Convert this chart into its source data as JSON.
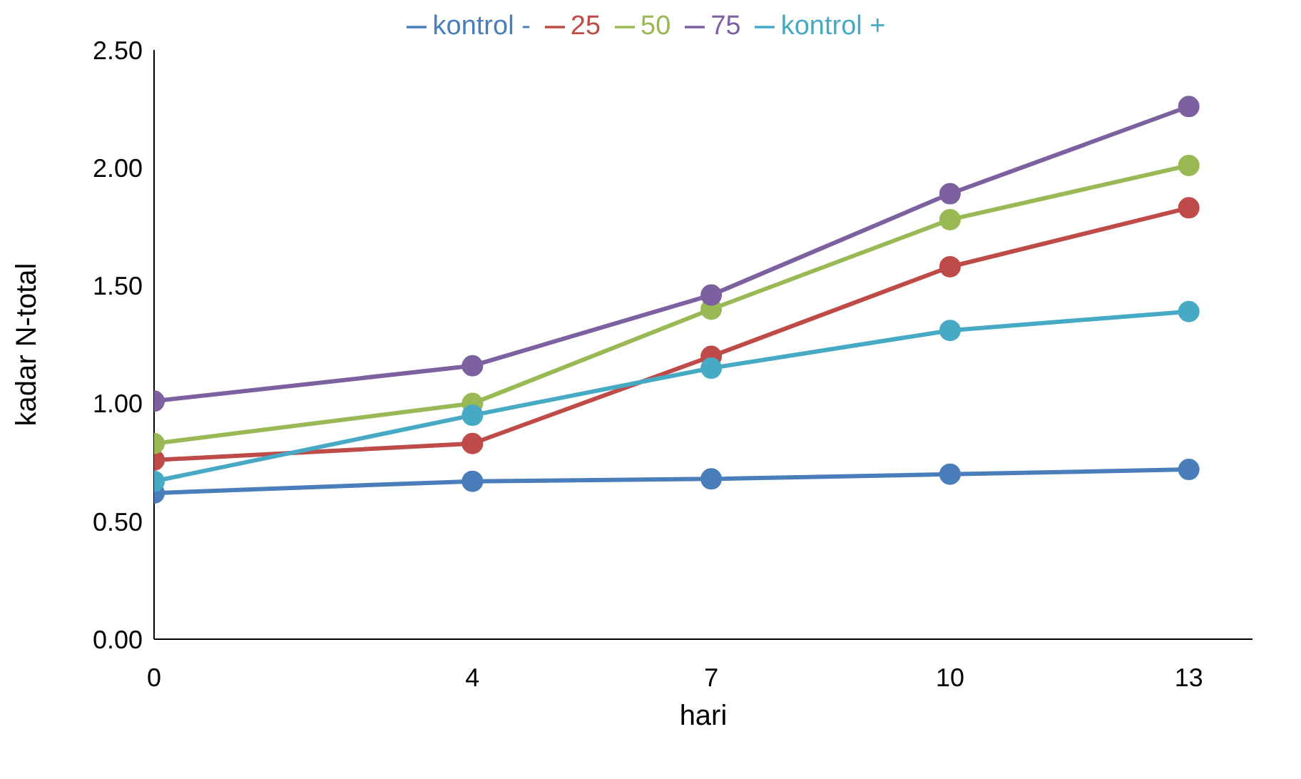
{
  "chart_data": {
    "type": "line",
    "xlabel": "hari",
    "ylabel": "kadar N-total",
    "x": [
      0,
      4,
      7,
      10,
      13
    ],
    "xlim": [
      0,
      13.8
    ],
    "xticks": [
      0,
      4,
      7,
      10,
      13
    ],
    "ylim": [
      0,
      2.5
    ],
    "yticks": [
      {
        "value": 0,
        "label": "0.00"
      },
      {
        "value": 0.5,
        "label": "0.50"
      },
      {
        "value": 1,
        "label": "1.00"
      },
      {
        "value": 1.5,
        "label": "1.50"
      },
      {
        "value": 2,
        "label": "2.00"
      },
      {
        "value": 2.5,
        "label": "2.50"
      }
    ],
    "grid": false,
    "legend": "top",
    "marker": "circle",
    "line_style": "solid",
    "series": [
      {
        "name": "kontrol -",
        "color": "#4a7ebb",
        "values": [
          0.62,
          0.67,
          0.68,
          0.7,
          0.72
        ]
      },
      {
        "name": "25",
        "color": "#be4b48",
        "values": [
          0.76,
          0.83,
          1.2,
          1.58,
          1.83
        ]
      },
      {
        "name": "50",
        "color": "#98b954",
        "values": [
          0.83,
          1.0,
          1.4,
          1.78,
          2.01
        ]
      },
      {
        "name": "75",
        "color": "#7d60a0",
        "values": [
          1.01,
          1.16,
          1.46,
          1.89,
          2.26
        ]
      },
      {
        "name": "kontrol +",
        "color": "#46aac5",
        "values": [
          0.67,
          0.95,
          1.15,
          1.31,
          1.39
        ]
      }
    ]
  }
}
